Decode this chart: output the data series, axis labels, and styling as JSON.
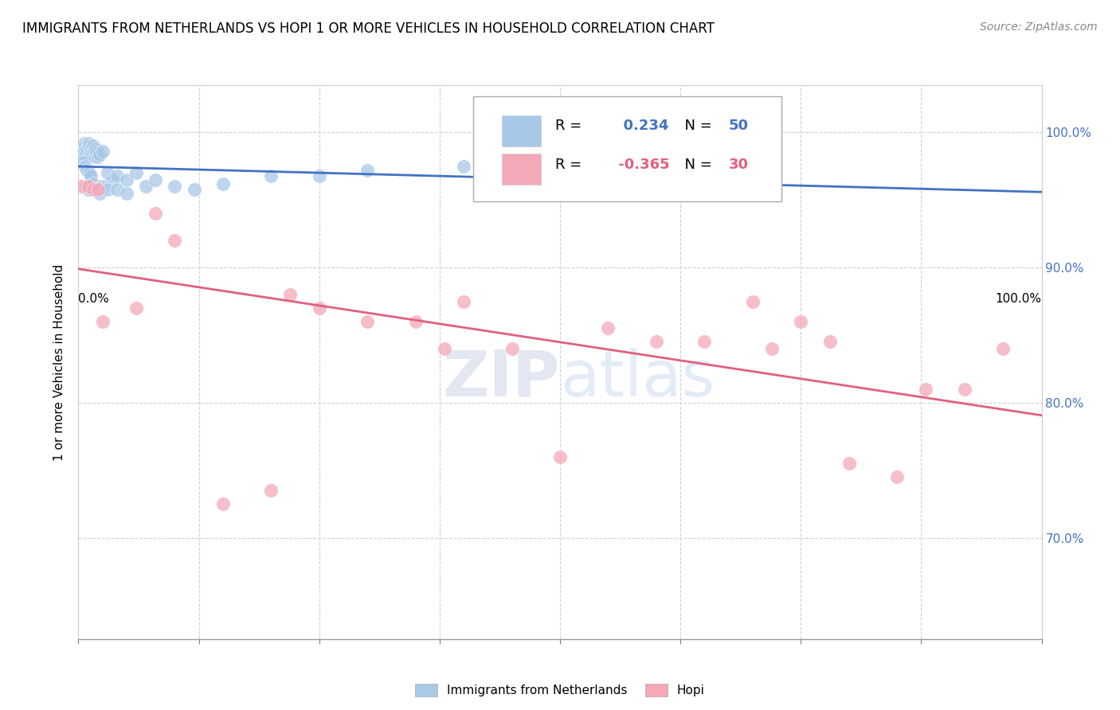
{
  "title": "IMMIGRANTS FROM NETHERLANDS VS HOPI 1 OR MORE VEHICLES IN HOUSEHOLD CORRELATION CHART",
  "source": "Source: ZipAtlas.com",
  "ylabel": "1 or more Vehicles in Household",
  "legend_blue_label": "Immigrants from Netherlands",
  "legend_pink_label": "Hopi",
  "R_blue": 0.234,
  "N_blue": 50,
  "R_pink": -0.365,
  "N_pink": 30,
  "blue_color": "#a8c8e8",
  "pink_color": "#f4a8b8",
  "blue_line_color": "#4472c4",
  "pink_line_color": "#e06080",
  "xlim": [
    0.0,
    1.0
  ],
  "ylim": [
    0.625,
    1.035
  ],
  "yticks": [
    0.7,
    0.8,
    0.9,
    1.0
  ],
  "ytick_labels": [
    "70.0%",
    "80.0%",
    "90.0%",
    "100.0%"
  ],
  "xticks": [
    0.0,
    0.125,
    0.25,
    0.375,
    0.5,
    0.625,
    0.75,
    0.875,
    1.0
  ],
  "blue_x": [
    0.002,
    0.003,
    0.005,
    0.006,
    0.007,
    0.008,
    0.009,
    0.01,
    0.011,
    0.012,
    0.013,
    0.014,
    0.015,
    0.016,
    0.017,
    0.018,
    0.019,
    0.02,
    0.022,
    0.025,
    0.005,
    0.007,
    0.009,
    0.011,
    0.013,
    0.03,
    0.035,
    0.04,
    0.05,
    0.06,
    0.008,
    0.01,
    0.012,
    0.015,
    0.018,
    0.022,
    0.025,
    0.03,
    0.04,
    0.05,
    0.07,
    0.08,
    0.1,
    0.12,
    0.15,
    0.2,
    0.25,
    0.3,
    0.4,
    0.55
  ],
  "blue_y": [
    0.99,
    0.985,
    0.988,
    0.992,
    0.99,
    0.985,
    0.988,
    0.992,
    0.99,
    0.985,
    0.988,
    0.984,
    0.99,
    0.986,
    0.982,
    0.988,
    0.985,
    0.982,
    0.984,
    0.986,
    0.978,
    0.975,
    0.972,
    0.97,
    0.968,
    0.97,
    0.965,
    0.968,
    0.965,
    0.97,
    0.96,
    0.958,
    0.96,
    0.962,
    0.958,
    0.955,
    0.96,
    0.958,
    0.958,
    0.955,
    0.96,
    0.965,
    0.96,
    0.958,
    0.962,
    0.968,
    0.968,
    0.972,
    0.975,
    0.975
  ],
  "pink_x": [
    0.003,
    0.01,
    0.015,
    0.02,
    0.025,
    0.06,
    0.08,
    0.1,
    0.15,
    0.2,
    0.22,
    0.25,
    0.3,
    0.35,
    0.38,
    0.4,
    0.45,
    0.5,
    0.55,
    0.6,
    0.65,
    0.7,
    0.72,
    0.75,
    0.78,
    0.8,
    0.85,
    0.88,
    0.92,
    0.96
  ],
  "pink_y": [
    0.96,
    0.96,
    0.958,
    0.958,
    0.86,
    0.87,
    0.94,
    0.92,
    0.725,
    0.735,
    0.88,
    0.87,
    0.86,
    0.86,
    0.84,
    0.875,
    0.84,
    0.76,
    0.855,
    0.845,
    0.845,
    0.875,
    0.84,
    0.86,
    0.845,
    0.755,
    0.745,
    0.81,
    0.81,
    0.84
  ]
}
